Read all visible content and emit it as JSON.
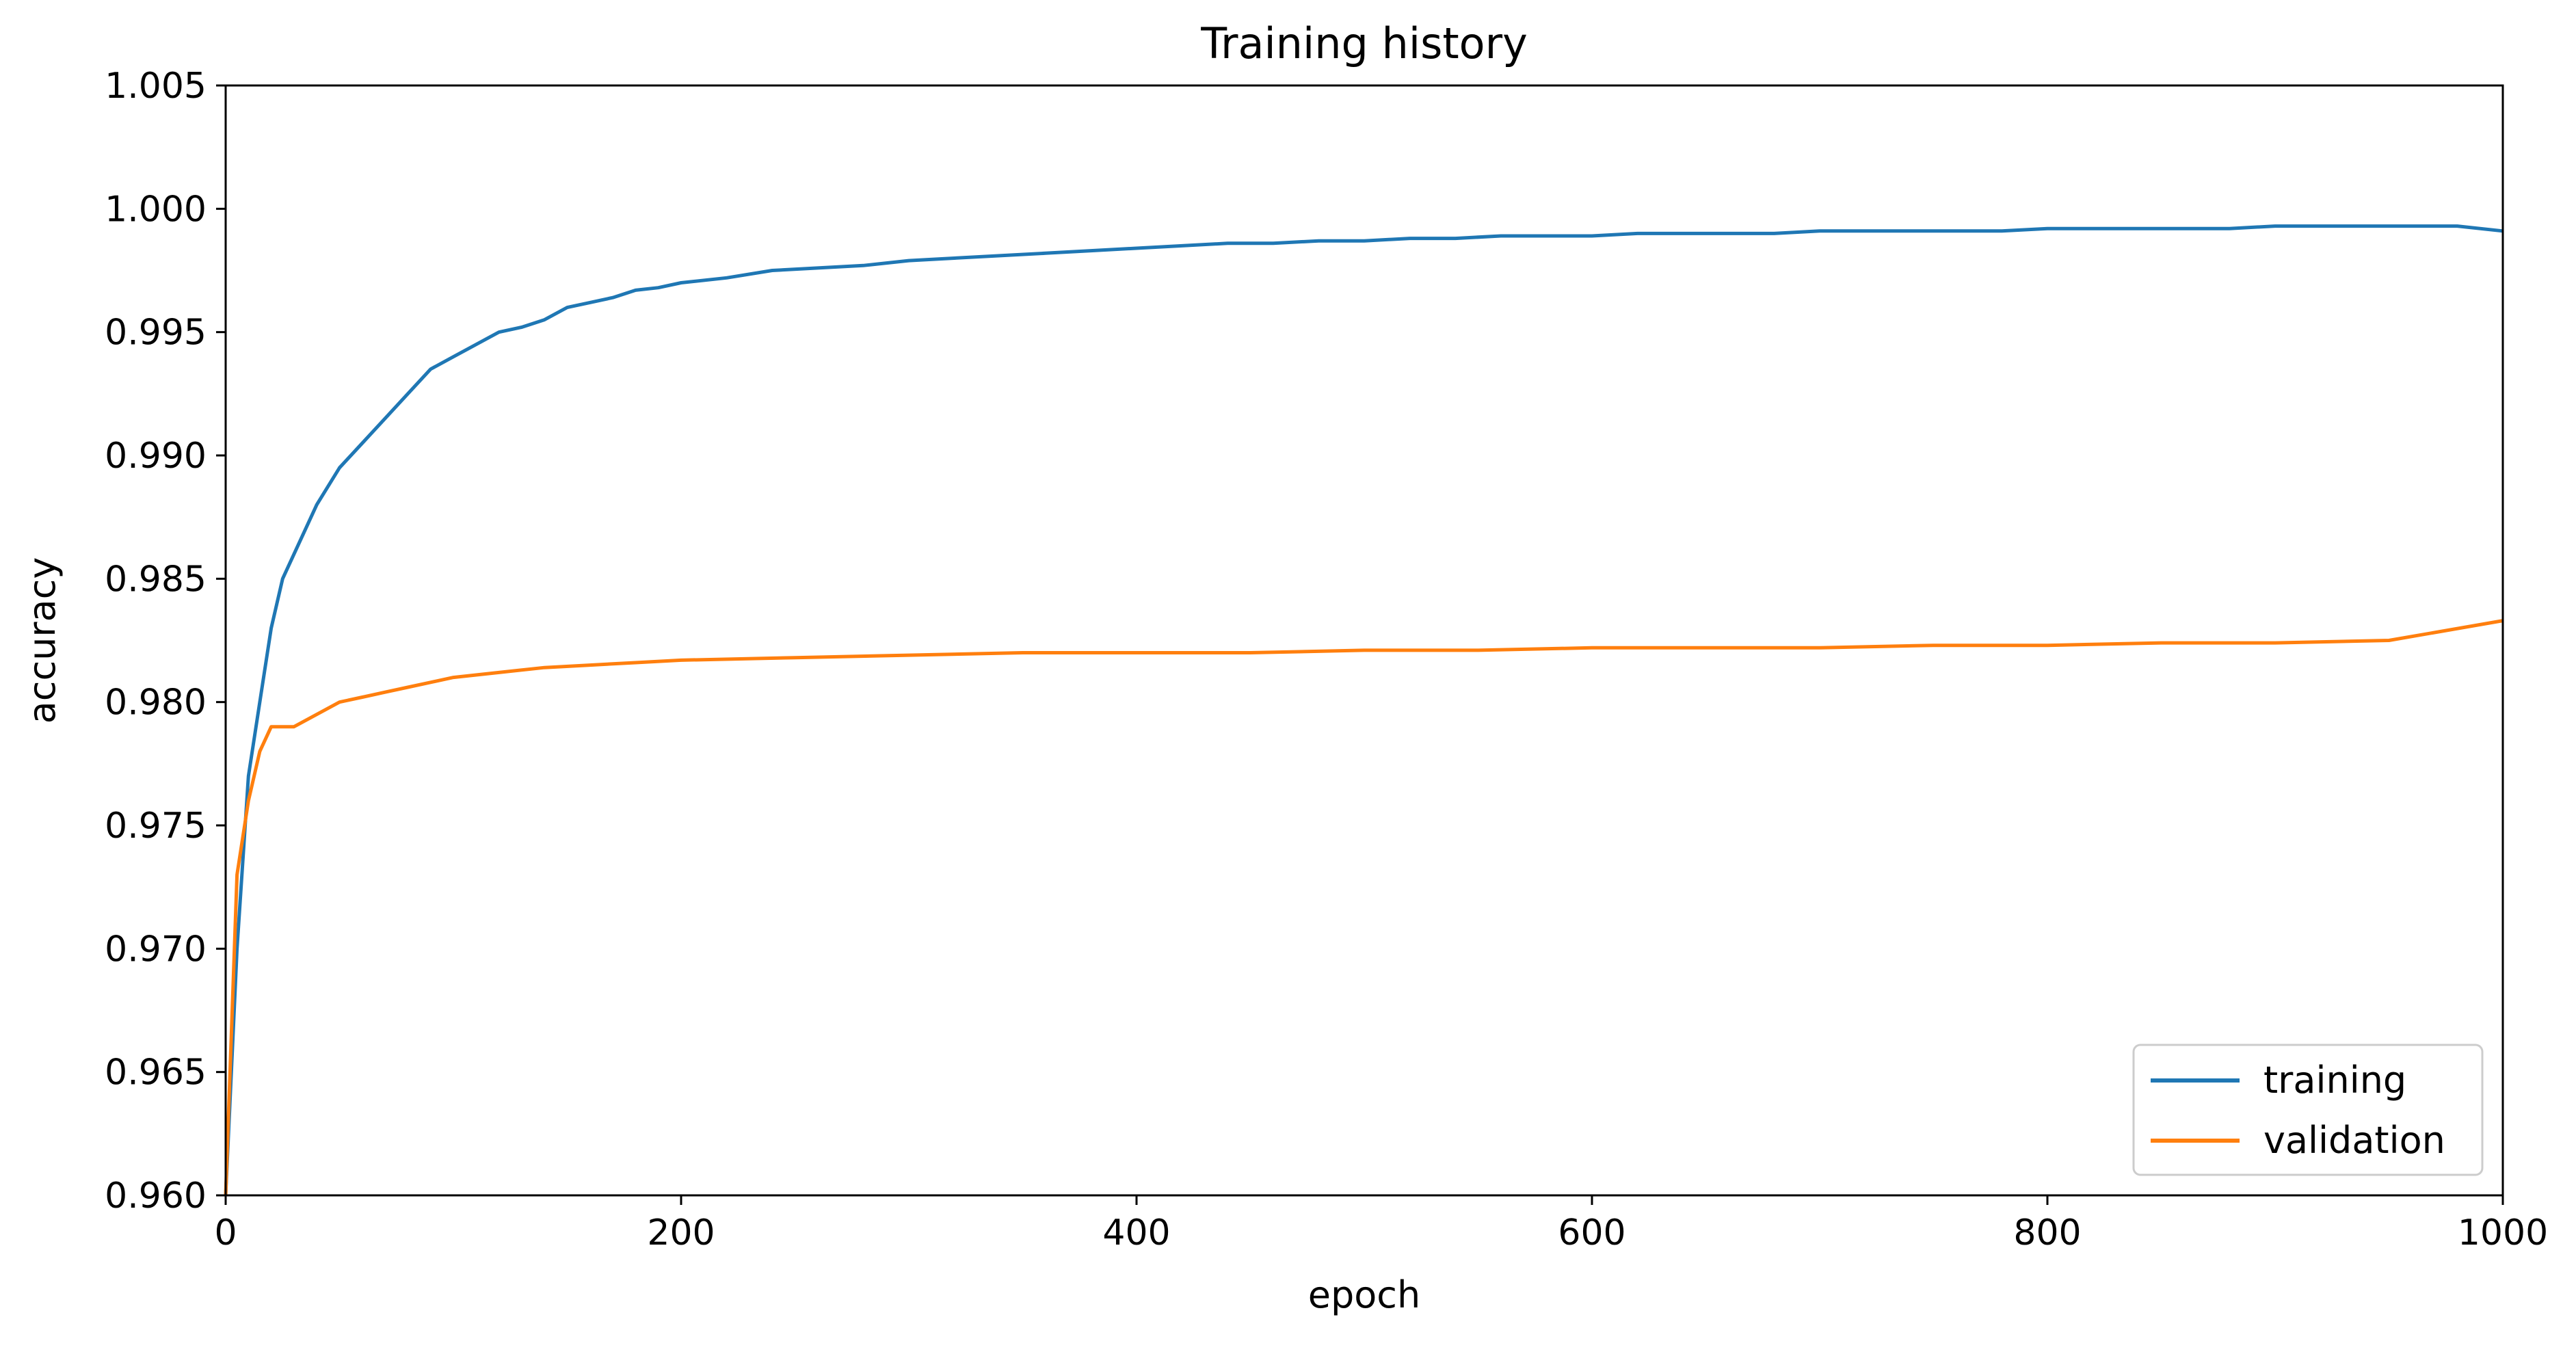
{
  "chart_data": {
    "type": "line",
    "title": "Training history",
    "xlabel": "epoch",
    "ylabel": "accuracy",
    "xlim": [
      0,
      1000
    ],
    "ylim": [
      0.96,
      1.005
    ],
    "xticks": [
      0,
      200,
      400,
      600,
      800,
      1000
    ],
    "xtick_labels": [
      "0",
      "200",
      "400",
      "600",
      "800",
      "1000"
    ],
    "yticks": [
      0.96,
      0.965,
      0.97,
      0.975,
      0.98,
      0.985,
      0.99,
      0.995,
      1.0,
      1.005
    ],
    "ytick_labels": [
      "0.960",
      "0.965",
      "0.970",
      "0.975",
      "0.980",
      "0.985",
      "0.990",
      "0.995",
      "1.000",
      "1.005"
    ],
    "grid": false,
    "legend_position": "bottom-right",
    "series": [
      {
        "name": "training",
        "color": "#1f77b4",
        "x": [
          0,
          5,
          10,
          15,
          20,
          25,
          30,
          40,
          50,
          60,
          70,
          80,
          90,
          100,
          110,
          120,
          130,
          140,
          150,
          160,
          170,
          180,
          190,
          200,
          220,
          240,
          260,
          280,
          300,
          320,
          340,
          360,
          380,
          400,
          420,
          440,
          460,
          480,
          500,
          520,
          540,
          560,
          580,
          600,
          620,
          640,
          660,
          680,
          700,
          720,
          740,
          760,
          780,
          800,
          820,
          840,
          860,
          880,
          900,
          920,
          940,
          960,
          980,
          1000
        ],
        "values": [
          0.96,
          0.97,
          0.977,
          0.98,
          0.983,
          0.985,
          0.986,
          0.988,
          0.9895,
          0.9905,
          0.9915,
          0.9925,
          0.9935,
          0.994,
          0.9945,
          0.995,
          0.9952,
          0.9955,
          0.996,
          0.9962,
          0.9964,
          0.9967,
          0.9968,
          0.997,
          0.9972,
          0.9975,
          0.9976,
          0.9977,
          0.9979,
          0.998,
          0.9981,
          0.9982,
          0.9983,
          0.9984,
          0.9985,
          0.9986,
          0.9986,
          0.9987,
          0.9987,
          0.9988,
          0.9988,
          0.9989,
          0.9989,
          0.9989,
          0.999,
          0.999,
          0.999,
          0.999,
          0.9991,
          0.9991,
          0.9991,
          0.9991,
          0.9991,
          0.9992,
          0.9992,
          0.9992,
          0.9992,
          0.9992,
          0.9993,
          0.9993,
          0.9993,
          0.9993,
          0.9993,
          0.9991
        ]
      },
      {
        "name": "validation",
        "color": "#ff7f0e",
        "x": [
          0,
          5,
          10,
          15,
          20,
          25,
          30,
          40,
          50,
          60,
          70,
          80,
          90,
          100,
          120,
          140,
          160,
          180,
          200,
          250,
          300,
          350,
          400,
          450,
          500,
          550,
          600,
          650,
          700,
          750,
          800,
          850,
          900,
          950,
          1000
        ],
        "values": [
          0.96,
          0.973,
          0.976,
          0.978,
          0.979,
          0.979,
          0.979,
          0.9795,
          0.98,
          0.9802,
          0.9804,
          0.9806,
          0.9808,
          0.981,
          0.9812,
          0.9814,
          0.9815,
          0.9816,
          0.9817,
          0.9818,
          0.9819,
          0.982,
          0.982,
          0.982,
          0.9821,
          0.9821,
          0.9822,
          0.9822,
          0.9822,
          0.9823,
          0.9823,
          0.9824,
          0.9824,
          0.9825,
          0.9833
        ]
      }
    ]
  }
}
